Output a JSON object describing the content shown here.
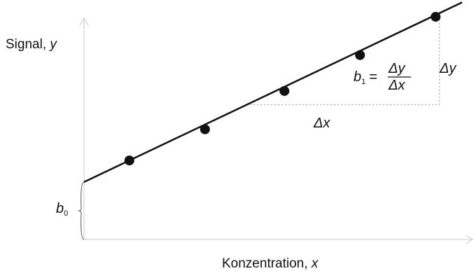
{
  "chart_data": {
    "type": "scatter",
    "title": "",
    "ylabel": {
      "text": "Signal, ",
      "var": "y"
    },
    "xlabel": {
      "text": "Konzentration, ",
      "var": "x"
    },
    "xlim": [
      0,
      10
    ],
    "ylim": [
      0,
      10
    ],
    "grid": false,
    "points": [
      {
        "x": 1.2,
        "y": 3.3
      },
      {
        "x": 3.2,
        "y": 4.6
      },
      {
        "x": 5.3,
        "y": 6.2
      },
      {
        "x": 7.3,
        "y": 7.7
      },
      {
        "x": 9.3,
        "y": 9.3
      }
    ],
    "fit_line": {
      "intercept": 2.4,
      "slope": 0.75,
      "x_range": [
        0,
        10
      ]
    },
    "slope_triangle": {
      "x_start": 4.3,
      "x_end": 9.4
    },
    "annotations": {
      "b0": "b",
      "b0_sub": "0",
      "b1": "b",
      "b1_sub": "1",
      "equals": "=",
      "delta_y": "Δy",
      "delta_x": "Δx",
      "frac_num": "Δy",
      "frac_den": "Δx"
    },
    "colors": {
      "axis": "#c8c8c8",
      "line": "#111111",
      "points": "#111111",
      "triangle": "#9a9a9a"
    }
  }
}
